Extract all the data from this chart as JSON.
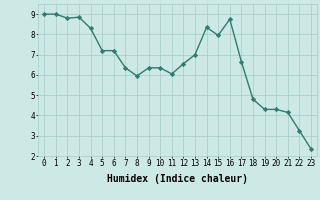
{
  "x": [
    0,
    1,
    2,
    3,
    4,
    5,
    6,
    7,
    8,
    9,
    10,
    11,
    12,
    13,
    14,
    15,
    16,
    17,
    18,
    19,
    20,
    21,
    22,
    23
  ],
  "y": [
    9.0,
    9.0,
    8.8,
    8.85,
    8.3,
    7.2,
    7.2,
    6.35,
    5.95,
    6.35,
    6.35,
    6.05,
    6.55,
    7.0,
    8.35,
    7.95,
    8.75,
    6.65,
    4.8,
    4.3,
    4.3,
    4.15,
    3.25,
    2.35
  ],
  "line_color": "#2e7d6e",
  "marker": "D",
  "marker_size": 2.2,
  "xlabel": "Humidex (Indice chaleur)",
  "ylim": [
    2,
    9.5
  ],
  "xlim": [
    -0.5,
    23.5
  ],
  "yticks": [
    2,
    3,
    4,
    5,
    6,
    7,
    8,
    9
  ],
  "xticks": [
    0,
    1,
    2,
    3,
    4,
    5,
    6,
    7,
    8,
    9,
    10,
    11,
    12,
    13,
    14,
    15,
    16,
    17,
    18,
    19,
    20,
    21,
    22,
    23
  ],
  "bg_color": "#cce9e5",
  "grid_color": "#a8ccc8",
  "tick_fontsize": 5.5,
  "xlabel_fontsize": 7,
  "line_width": 1.0
}
